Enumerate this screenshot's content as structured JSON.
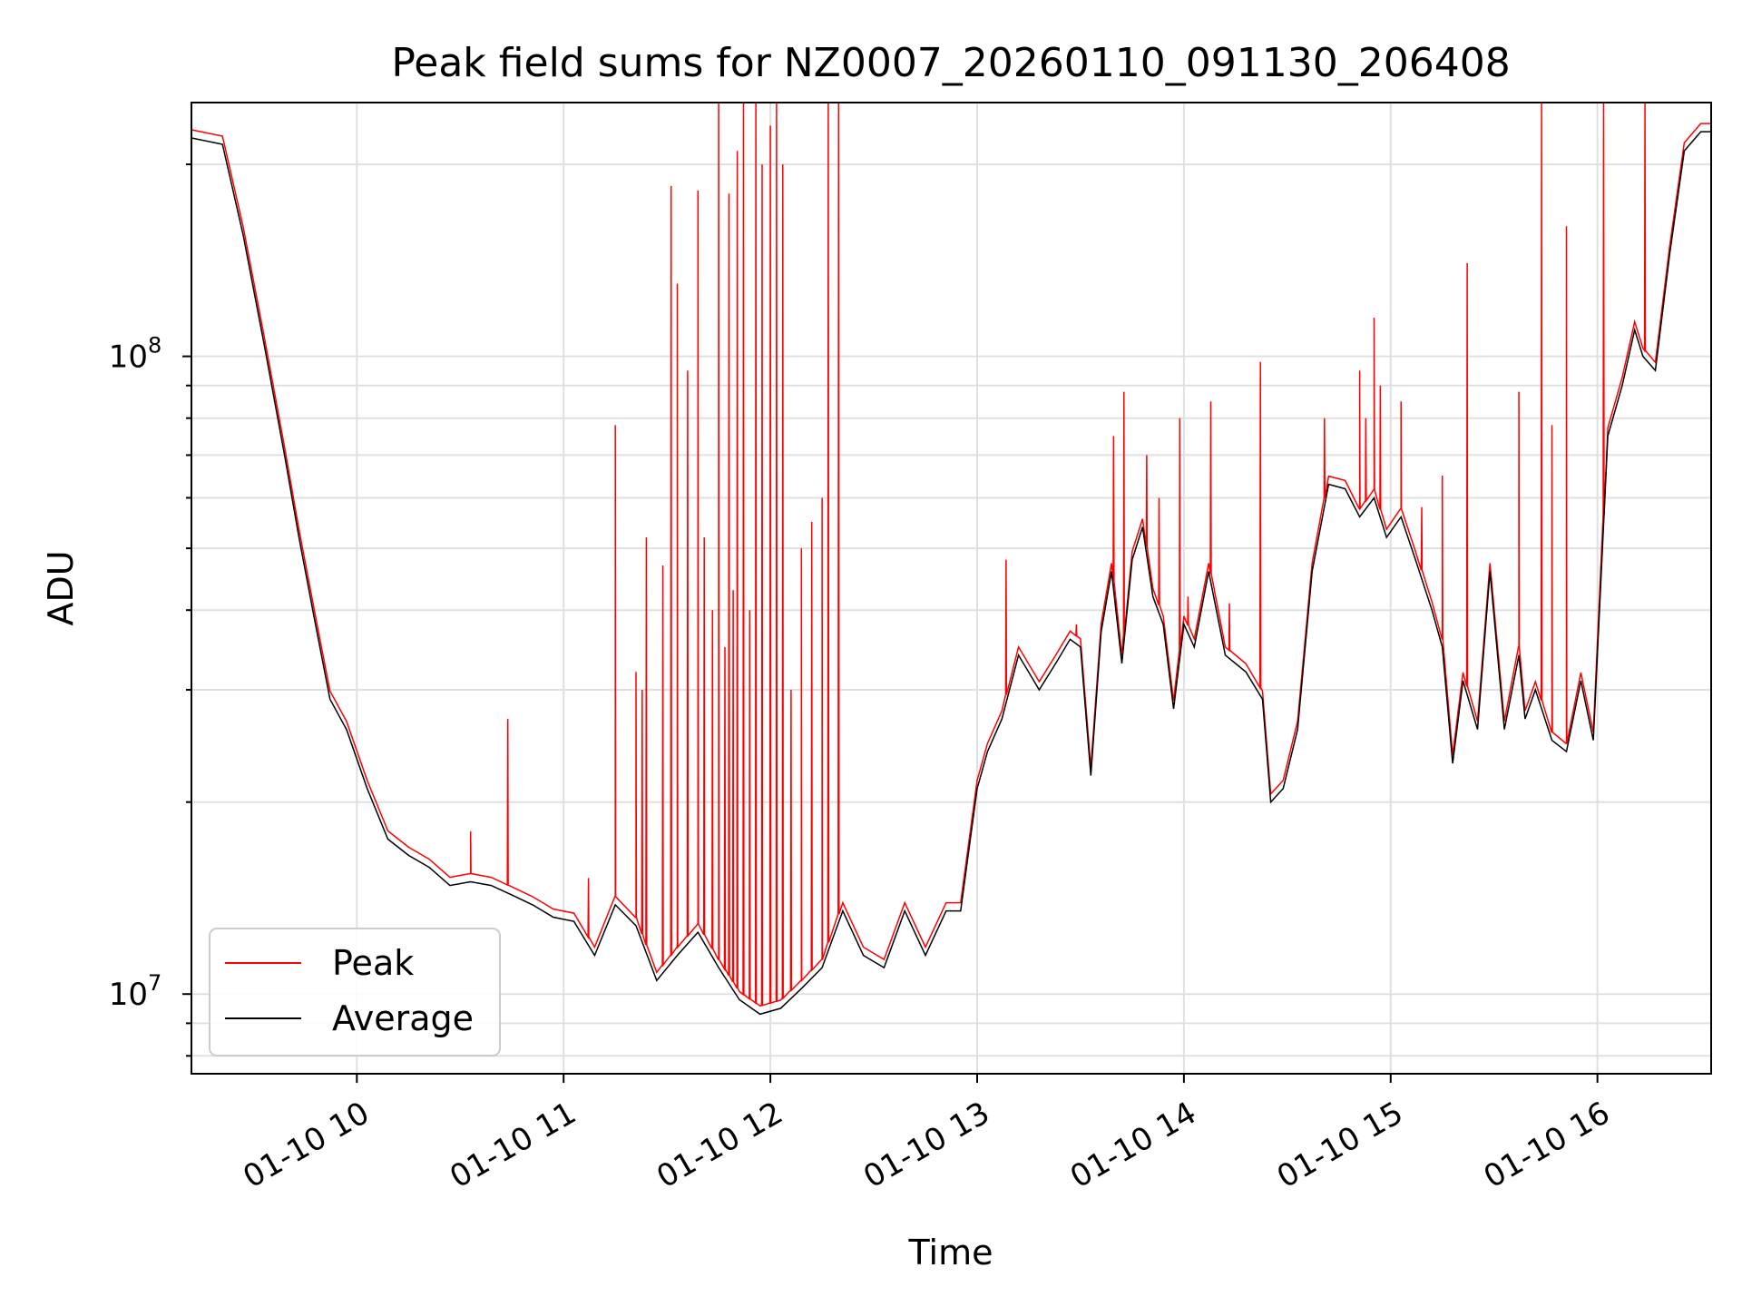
{
  "chart_data": {
    "type": "line",
    "title": "Peak field sums for NZ0007_20260110_091130_206408",
    "xlabel": "Time",
    "ylabel": "ADU",
    "yscale": "log",
    "xlim_hours": [
      9.2,
      16.55
    ],
    "ylim": [
      7500000,
      250000000
    ],
    "grid": true,
    "x_ticks": [
      {
        "value": 10,
        "label": "01-10 10"
      },
      {
        "value": 11,
        "label": "01-10 11"
      },
      {
        "value": 12,
        "label": "01-10 12"
      },
      {
        "value": 13,
        "label": "01-10 13"
      },
      {
        "value": 14,
        "label": "01-10 14"
      },
      {
        "value": 15,
        "label": "01-10 15"
      },
      {
        "value": 16,
        "label": "01-10 16"
      }
    ],
    "y_ticks": [
      {
        "value": 10000000,
        "base": "10",
        "exp": "7"
      },
      {
        "value": 100000000,
        "base": "10",
        "exp": "8"
      }
    ],
    "legend": {
      "position": "lower-left",
      "entries": [
        "Peak",
        "Average"
      ]
    },
    "colors": {
      "peak": "#ff0000",
      "average": "#000000",
      "grid": "#e0e0e0"
    },
    "series": [
      {
        "name": "Average",
        "x": [
          9.2,
          9.35,
          9.45,
          9.55,
          9.65,
          9.72,
          9.8,
          9.87,
          9.95,
          10.05,
          10.15,
          10.25,
          10.35,
          10.45,
          10.55,
          10.65,
          10.75,
          10.85,
          10.95,
          11.05,
          11.15,
          11.25,
          11.35,
          11.45,
          11.55,
          11.65,
          11.75,
          11.85,
          11.95,
          12.05,
          12.15,
          12.25,
          12.35,
          12.45,
          12.55,
          12.65,
          12.75,
          12.85,
          12.92,
          13.0,
          13.05,
          13.12,
          13.2,
          13.3,
          13.38,
          13.45,
          13.5,
          13.55,
          13.6,
          13.65,
          13.7,
          13.75,
          13.8,
          13.85,
          13.9,
          13.95,
          14.0,
          14.05,
          14.12,
          14.2,
          14.3,
          14.38,
          14.42,
          14.48,
          14.55,
          14.62,
          14.7,
          14.78,
          14.85,
          14.92,
          14.98,
          15.05,
          15.12,
          15.2,
          15.25,
          15.3,
          15.35,
          15.42,
          15.48,
          15.55,
          15.62,
          15.65,
          15.7,
          15.78,
          15.85,
          15.92,
          15.98,
          16.05,
          16.12,
          16.18,
          16.22,
          16.28,
          16.35,
          16.42,
          16.5,
          16.55
        ],
        "values": [
          220000000,
          215000000,
          155000000,
          105000000,
          70000000,
          52000000,
          38000000,
          29000000,
          26000000,
          21000000,
          17500000,
          16500000,
          15800000,
          14800000,
          15000000,
          14800000,
          14300000,
          13800000,
          13200000,
          13000000,
          11500000,
          13800000,
          12800000,
          10500000,
          11500000,
          12500000,
          11000000,
          9800000,
          9300000,
          9500000,
          10200000,
          11000000,
          13500000,
          11500000,
          11000000,
          13500000,
          11500000,
          13500000,
          13500000,
          21000000,
          24000000,
          27000000,
          34000000,
          30000000,
          33000000,
          36000000,
          35000000,
          22000000,
          37000000,
          46000000,
          33000000,
          48000000,
          54000000,
          42000000,
          38000000,
          28000000,
          38000000,
          35000000,
          46000000,
          34000000,
          32000000,
          29000000,
          20000000,
          21000000,
          26000000,
          46000000,
          63000000,
          62000000,
          56000000,
          60000000,
          52000000,
          56000000,
          48000000,
          40000000,
          35000000,
          23000000,
          31000000,
          26000000,
          46000000,
          26000000,
          34000000,
          27000000,
          30000000,
          25000000,
          24000000,
          31000000,
          25000000,
          75000000,
          90000000,
          110000000,
          100000000,
          95000000,
          145000000,
          210000000,
          225000000,
          225000000
        ]
      },
      {
        "name": "Peak",
        "spikes": [
          {
            "x": 10.55,
            "y": 18000000
          },
          {
            "x": 10.73,
            "y": 27000000
          },
          {
            "x": 11.12,
            "y": 15200000
          },
          {
            "x": 11.25,
            "y": 78000000
          },
          {
            "x": 11.35,
            "y": 32000000
          },
          {
            "x": 11.38,
            "y": 30000000
          },
          {
            "x": 11.4,
            "y": 52000000
          },
          {
            "x": 11.48,
            "y": 47000000
          },
          {
            "x": 11.52,
            "y": 185000000
          },
          {
            "x": 11.55,
            "y": 130000000
          },
          {
            "x": 11.6,
            "y": 95000000
          },
          {
            "x": 11.65,
            "y": 182000000
          },
          {
            "x": 11.68,
            "y": 52000000
          },
          {
            "x": 11.72,
            "y": 40000000
          },
          {
            "x": 11.75,
            "y": 250000000
          },
          {
            "x": 11.78,
            "y": 35000000
          },
          {
            "x": 11.8,
            "y": 180000000
          },
          {
            "x": 11.82,
            "y": 43000000
          },
          {
            "x": 11.84,
            "y": 210000000
          },
          {
            "x": 11.87,
            "y": 250000000
          },
          {
            "x": 11.9,
            "y": 40000000
          },
          {
            "x": 11.93,
            "y": 250000000
          },
          {
            "x": 11.96,
            "y": 200000000
          },
          {
            "x": 12.0,
            "y": 230000000
          },
          {
            "x": 12.03,
            "y": 250000000
          },
          {
            "x": 12.06,
            "y": 200000000
          },
          {
            "x": 12.1,
            "y": 30000000
          },
          {
            "x": 12.15,
            "y": 50000000
          },
          {
            "x": 12.2,
            "y": 55000000
          },
          {
            "x": 12.25,
            "y": 60000000
          },
          {
            "x": 12.28,
            "y": 250000000
          },
          {
            "x": 12.33,
            "y": 250000000
          },
          {
            "x": 13.14,
            "y": 48000000
          },
          {
            "x": 13.48,
            "y": 38000000
          },
          {
            "x": 13.66,
            "y": 75000000
          },
          {
            "x": 13.71,
            "y": 88000000
          },
          {
            "x": 13.82,
            "y": 70000000
          },
          {
            "x": 13.88,
            "y": 60000000
          },
          {
            "x": 13.98,
            "y": 80000000
          },
          {
            "x": 14.02,
            "y": 42000000
          },
          {
            "x": 14.13,
            "y": 85000000
          },
          {
            "x": 14.22,
            "y": 41000000
          },
          {
            "x": 14.37,
            "y": 98000000
          },
          {
            "x": 14.68,
            "y": 80000000
          },
          {
            "x": 14.85,
            "y": 95000000
          },
          {
            "x": 14.88,
            "y": 80000000
          },
          {
            "x": 14.92,
            "y": 115000000
          },
          {
            "x": 14.95,
            "y": 90000000
          },
          {
            "x": 15.05,
            "y": 85000000
          },
          {
            "x": 15.15,
            "y": 58000000
          },
          {
            "x": 15.25,
            "y": 65000000
          },
          {
            "x": 15.37,
            "y": 140000000
          },
          {
            "x": 15.62,
            "y": 88000000
          },
          {
            "x": 15.73,
            "y": 250000000
          },
          {
            "x": 15.78,
            "y": 78000000
          },
          {
            "x": 15.85,
            "y": 160000000
          },
          {
            "x": 16.03,
            "y": 250000000
          },
          {
            "x": 16.23,
            "y": 250000000
          }
        ]
      }
    ]
  }
}
